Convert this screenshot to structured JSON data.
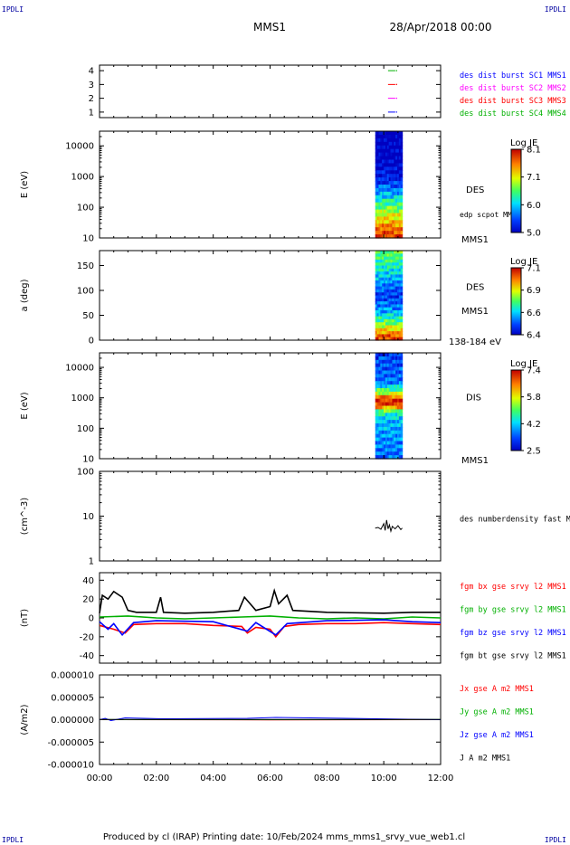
{
  "corner_label": "IPDLI",
  "header": {
    "title": "MMS1",
    "date": "28/Apr/2018 00:00"
  },
  "footer": "Produced by cl (IRAP)    Printing date: 10/Feb/2024    mms_mms1_srvy_vue_web1.cl",
  "colors": {
    "red": "#ff0000",
    "green": "#00b000",
    "blue": "#0000ff",
    "magenta": "#ff00ff",
    "black": "#000000"
  },
  "chart_data": {
    "type": "multi-panel time series",
    "x": {
      "ticks": [
        "00:00",
        "02:00",
        "04:00",
        "06:00",
        "08:00",
        "10:00",
        "12:00"
      ],
      "range_hours": [
        0,
        12
      ]
    },
    "panels": [
      {
        "id": "burst",
        "type": "timeline",
        "ylim": [
          0.6,
          4.4
        ],
        "y_ticks": [
          "1",
          "2",
          "3",
          "4"
        ],
        "legend": [
          {
            "text": "des dist burst SC1 MMS1",
            "color": "#0000ff"
          },
          {
            "text": "des dist burst SC2 MMS2",
            "color": "#ff00ff"
          },
          {
            "text": "des dist burst SC3 MMS3",
            "color": "#ff0000"
          },
          {
            "text": "des dist burst SC4 MMS4",
            "color": "#00b000"
          }
        ],
        "segments": [
          {
            "level": 4,
            "color": "#00b000",
            "start": 10.15,
            "end": 10.45
          },
          {
            "level": 3,
            "color": "#ff0000",
            "start": 10.15,
            "end": 10.45
          },
          {
            "level": 2,
            "color": "#ff00ff",
            "start": 10.15,
            "end": 10.45
          },
          {
            "level": 1,
            "color": "#0000ff",
            "start": 10.15,
            "end": 10.45
          }
        ]
      },
      {
        "id": "des_energy",
        "type": "heatmap",
        "ylabel": "E (eV)",
        "scale": "log",
        "ylim": [
          10,
          30000
        ],
        "y_ticks": [
          "10",
          "100",
          "1000",
          "10000"
        ],
        "species": "DES",
        "side_note": "edp scpot MMS1",
        "side_bottom": "MMS1",
        "x_range": [
          9.7,
          10.65
        ],
        "colorbar": {
          "title": "Log JE",
          "min": 5.0,
          "max": 8.1,
          "ticks": [
            "8.1",
            "7.1",
            "6.0",
            "5.0"
          ]
        },
        "profile": [
          {
            "y": 10,
            "v": 0.97
          },
          {
            "y": 20,
            "v": 0.88
          },
          {
            "y": 40,
            "v": 0.75
          },
          {
            "y": 70,
            "v": 0.62
          },
          {
            "y": 150,
            "v": 0.45
          },
          {
            "y": 300,
            "v": 0.3
          },
          {
            "y": 700,
            "v": 0.14
          },
          {
            "y": 2000,
            "v": 0.04
          },
          {
            "y": 30000,
            "v": 0.0
          }
        ]
      },
      {
        "id": "des_pitch",
        "type": "heatmap",
        "ylabel": "a (deg)",
        "scale": "linear",
        "ylim": [
          0,
          180
        ],
        "y_ticks": [
          "0",
          "50",
          "100",
          "150"
        ],
        "species": "DES",
        "side_bottom": "MMS1",
        "energy_range": "138-184 eV",
        "x_range": [
          9.7,
          10.65
        ],
        "colorbar": {
          "title": "Log JE",
          "min": 6.4,
          "max": 7.1,
          "ticks": [
            "7.1",
            "6.9",
            "6.6",
            "6.4"
          ]
        },
        "profile": [
          {
            "y": 0,
            "v": 0.95
          },
          {
            "y": 10,
            "v": 0.9
          },
          {
            "y": 20,
            "v": 0.75
          },
          {
            "y": 35,
            "v": 0.55
          },
          {
            "y": 60,
            "v": 0.3
          },
          {
            "y": 90,
            "v": 0.15
          },
          {
            "y": 120,
            "v": 0.3
          },
          {
            "y": 150,
            "v": 0.45
          },
          {
            "y": 180,
            "v": 0.55
          }
        ]
      },
      {
        "id": "dis_energy",
        "type": "heatmap",
        "ylabel": "E (eV)",
        "scale": "log",
        "ylim": [
          10,
          30000
        ],
        "y_ticks": [
          "10",
          "100",
          "1000",
          "10000"
        ],
        "species": "DIS",
        "side_bottom": "MMS1",
        "x_range": [
          9.7,
          10.65
        ],
        "colorbar": {
          "title": "Log JE",
          "min": 2.5,
          "max": 7.4,
          "ticks": [
            "7.4",
            "5.8",
            "4.2",
            "2.5"
          ]
        },
        "profile": [
          {
            "y": 10,
            "v": 0.22
          },
          {
            "y": 80,
            "v": 0.3
          },
          {
            "y": 200,
            "v": 0.35
          },
          {
            "y": 350,
            "v": 0.5
          },
          {
            "y": 500,
            "v": 0.85
          },
          {
            "y": 700,
            "v": 1.0
          },
          {
            "y": 1000,
            "v": 0.9
          },
          {
            "y": 1500,
            "v": 0.6
          },
          {
            "y": 3000,
            "v": 0.25
          },
          {
            "y": 30000,
            "v": 0.15
          }
        ]
      },
      {
        "id": "density",
        "type": "line",
        "ylabel": "(cm^-3)",
        "scale": "log",
        "ylim": [
          1,
          100
        ],
        "y_ticks": [
          "1",
          "10",
          "100"
        ],
        "legend": [
          {
            "text": "des numberdensity fast M",
            "color": "#000000"
          }
        ],
        "series": [
          {
            "color": "#000000",
            "points": [
              [
                9.7,
                5.4
              ],
              [
                9.8,
                5.6
              ],
              [
                9.9,
                5.1
              ],
              [
                10.0,
                6.8
              ],
              [
                10.05,
                4.8
              ],
              [
                10.1,
                8.2
              ],
              [
                10.15,
                5.2
              ],
              [
                10.2,
                6.4
              ],
              [
                10.25,
                4.6
              ],
              [
                10.3,
                5.9
              ],
              [
                10.4,
                5.2
              ],
              [
                10.5,
                6.1
              ],
              [
                10.6,
                5.0
              ],
              [
                10.65,
                5.4
              ]
            ]
          }
        ]
      },
      {
        "id": "bfield",
        "type": "line",
        "ylabel": "(nT)",
        "ylim": [
          -48,
          48
        ],
        "y_ticks": [
          "-40",
          "-20",
          "0",
          "20",
          "40"
        ],
        "legend": [
          {
            "text": "fgm bx gse srvy l2 MMS1",
            "color": "#ff0000"
          },
          {
            "text": "fgm by gse srvy l2 MMS1",
            "color": "#00b000"
          },
          {
            "text": "fgm bz gse srvy l2 MMS1",
            "color": "#0000ff"
          },
          {
            "text": "fgm bt gse srvy l2 MMS1",
            "color": "#000000"
          }
        ],
        "series": [
          {
            "name": "bx",
            "color": "#ff0000",
            "points": [
              [
                0,
                -8
              ],
              [
                0.5,
                -12
              ],
              [
                0.9,
                -16
              ],
              [
                1.2,
                -7
              ],
              [
                2,
                -6
              ],
              [
                3,
                -6
              ],
              [
                4,
                -8
              ],
              [
                5,
                -9
              ],
              [
                5.2,
                -16
              ],
              [
                5.5,
                -10
              ],
              [
                6.0,
                -12
              ],
              [
                6.2,
                -20
              ],
              [
                6.5,
                -9
              ],
              [
                7,
                -7
              ],
              [
                8,
                -6
              ],
              [
                9,
                -6
              ],
              [
                10,
                -5
              ],
              [
                11,
                -6
              ],
              [
                12,
                -7
              ]
            ]
          },
          {
            "name": "by",
            "color": "#00b000",
            "points": [
              [
                0,
                1
              ],
              [
                1,
                2
              ],
              [
                2,
                0
              ],
              [
                3,
                -1
              ],
              [
                4,
                0
              ],
              [
                5,
                1
              ],
              [
                6,
                2
              ],
              [
                7,
                0
              ],
              [
                8,
                -1
              ],
              [
                9,
                0
              ],
              [
                10,
                -1
              ],
              [
                11,
                1
              ],
              [
                12,
                0
              ]
            ]
          },
          {
            "name": "bz",
            "color": "#0000ff",
            "points": [
              [
                0,
                -4
              ],
              [
                0.3,
                -12
              ],
              [
                0.5,
                -6
              ],
              [
                0.8,
                -18
              ],
              [
                1.2,
                -5
              ],
              [
                2,
                -3
              ],
              [
                4,
                -4
              ],
              [
                5.2,
                -14
              ],
              [
                5.5,
                -5
              ],
              [
                6.2,
                -18
              ],
              [
                6.6,
                -6
              ],
              [
                8,
                -3
              ],
              [
                10,
                -2
              ],
              [
                11,
                -4
              ],
              [
                12,
                -5
              ]
            ]
          },
          {
            "name": "bt",
            "color": "#000000",
            "points": [
              [
                0,
                5
              ],
              [
                0.1,
                24
              ],
              [
                0.3,
                20
              ],
              [
                0.5,
                28
              ],
              [
                0.8,
                22
              ],
              [
                1.0,
                8
              ],
              [
                1.3,
                6
              ],
              [
                2,
                6
              ],
              [
                2.15,
                22
              ],
              [
                2.25,
                6
              ],
              [
                3,
                5
              ],
              [
                4,
                6
              ],
              [
                4.9,
                8
              ],
              [
                5.1,
                22
              ],
              [
                5.3,
                15
              ],
              [
                5.5,
                8
              ],
              [
                6.0,
                12
              ],
              [
                6.15,
                29
              ],
              [
                6.3,
                15
              ],
              [
                6.6,
                24
              ],
              [
                6.8,
                8
              ],
              [
                8,
                6
              ],
              [
                10,
                5
              ],
              [
                11,
                6
              ],
              [
                12,
                6
              ]
            ]
          }
        ]
      },
      {
        "id": "current",
        "type": "line",
        "ylabel": "(A/m2)",
        "ylim": [
          -1e-05,
          1e-05
        ],
        "y_ticks": [
          "-0.000010",
          "-0.000005",
          "0.000000",
          "0.000005",
          "0.000010"
        ],
        "legend": [
          {
            "text": "Jx gse A m2 MMS1",
            "color": "#ff0000"
          },
          {
            "text": "Jy gse A m2 MMS1",
            "color": "#00b000"
          },
          {
            "text": "Jz gse A m2 MMS1",
            "color": "#0000ff"
          },
          {
            "text": "J A m2 MMS1",
            "color": "#000000"
          }
        ],
        "series": [
          {
            "name": "Jx",
            "color": "#ff0000",
            "points": [
              [
                0,
                0
              ],
              [
                6,
                -5e-08
              ],
              [
                12,
                0
              ]
            ]
          },
          {
            "name": "Jy",
            "color": "#00b000",
            "points": [
              [
                0,
                5e-08
              ],
              [
                6,
                0
              ],
              [
                12,
                5e-08
              ]
            ]
          },
          {
            "name": "Jz",
            "color": "#0000ff",
            "points": [
              [
                0,
                0
              ],
              [
                0.2,
                3e-07
              ],
              [
                0.4,
                -2e-07
              ],
              [
                0.9,
                4e-07
              ],
              [
                2.2,
                2e-07
              ],
              [
                5.2,
                3e-07
              ],
              [
                6.2,
                5e-07
              ],
              [
                12,
                0
              ]
            ]
          },
          {
            "name": "J",
            "color": "#000000",
            "points": [
              [
                0,
                5e-08
              ],
              [
                12,
                5e-08
              ]
            ]
          }
        ]
      }
    ]
  }
}
